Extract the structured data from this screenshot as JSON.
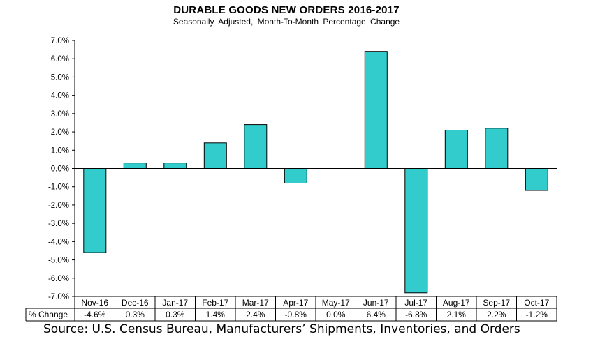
{
  "chart_data": {
    "type": "bar",
    "title": "DURABLE GOODS NEW ORDERS 2016-2017",
    "subtitle": "Seasonally Adjusted,  Month-To-Month  Percentage  Change",
    "categories": [
      "Nov-16",
      "Dec-16",
      "Jan-17",
      "Feb-17",
      "Mar-17",
      "Apr-17",
      "May-17",
      "Jun-17",
      "Jul-17",
      "Aug-17",
      "Sep-17",
      "Oct-17"
    ],
    "values": [
      -4.6,
      0.3,
      0.3,
      1.4,
      2.4,
      -0.8,
      0.0,
      6.4,
      -6.8,
      2.1,
      2.2,
      -1.2
    ],
    "value_labels": [
      "-4.6%",
      "0.3%",
      "0.3%",
      "1.4%",
      "2.4%",
      "-0.8%",
      "0.0%",
      "6.4%",
      "-6.8%",
      "2.1%",
      "2.2%",
      "-1.2%"
    ],
    "table_row_label": "% Change",
    "ylim": [
      -7.0,
      7.0
    ],
    "y_ticks": [
      7,
      6,
      5,
      4,
      3,
      2,
      1,
      0,
      -1,
      -2,
      -3,
      -4,
      -5,
      -6,
      -7
    ],
    "y_tick_labels": [
      "7.0%",
      "6.0%",
      "5.0%",
      "4.0%",
      "3.0%",
      "2.0%",
      "1.0%",
      "0.0%",
      "-1.0%",
      "-2.0%",
      "-3.0%",
      "-4.0%",
      "-5.0%",
      "-6.0%",
      "-7.0%"
    ],
    "grid": false,
    "legend": "none",
    "bar_color": "#33CCCC",
    "bar_edge_color": "#000000"
  },
  "source": "Source: U.S. Census Bureau, Manufacturers’ Shipments, Inventories, and Orders"
}
